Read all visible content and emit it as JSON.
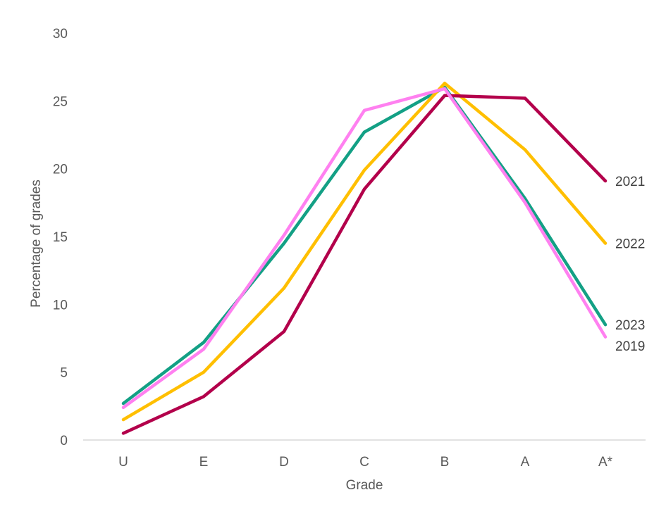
{
  "chart_data": {
    "type": "line",
    "title": "",
    "xlabel": "Grade",
    "ylabel": "Percentage of grades",
    "categories": [
      "U",
      "E",
      "D",
      "C",
      "B",
      "A",
      "A*"
    ],
    "ylim": [
      0,
      30
    ],
    "yticks": [
      "0",
      "5",
      "10",
      "15",
      "20",
      "25",
      "30"
    ],
    "grid": false,
    "legend": "series labels at line ends",
    "series": [
      {
        "name": "2023",
        "color": "#13a085",
        "values": [
          2.7,
          7.2,
          14.5,
          22.7,
          26.0,
          17.8,
          8.5
        ]
      },
      {
        "name": "2022",
        "color": "#ffbf00",
        "values": [
          1.5,
          5.0,
          11.2,
          19.9,
          26.3,
          21.4,
          14.5
        ]
      },
      {
        "name": "2021",
        "color": "#b3004b",
        "values": [
          0.5,
          3.2,
          8.0,
          18.5,
          25.4,
          25.2,
          19.1
        ]
      },
      {
        "name": "2019",
        "color": "#ff80f0",
        "values": [
          2.4,
          6.7,
          15.1,
          24.3,
          25.9,
          17.5,
          7.6
        ]
      }
    ]
  }
}
